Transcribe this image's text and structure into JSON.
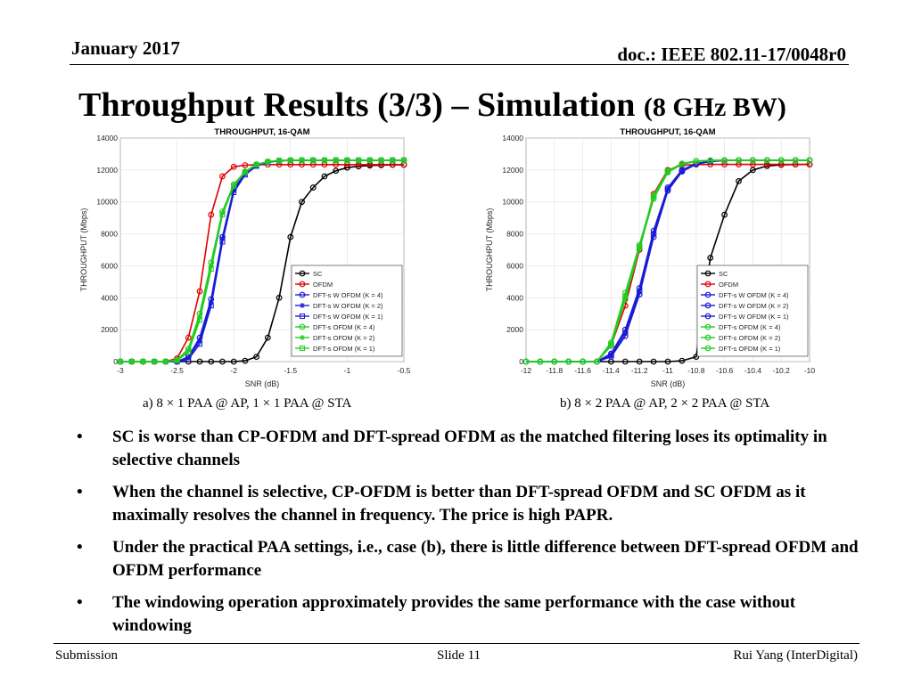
{
  "header": {
    "date": "January 2017",
    "doc": "doc.: IEEE 802.11-17/0048r0"
  },
  "title": {
    "main": "Throughput Results (3/3) – Simulation",
    "sub": "(8 GHz BW)"
  },
  "captions": [
    "a) 8 × 1 PAA @ AP, 1 × 1 PAA @ STA",
    "b) 8 × 2 PAA @ AP, 2 × 2 PAA @ STA"
  ],
  "bullets": [
    "SC is worse than CP-OFDM and DFT-spread OFDM as the matched filtering loses its optimality in selective channels",
    "When the channel is selective, CP-OFDM is better than DFT-spread OFDM and SC OFDM as it maximally resolves the channel in frequency. The price is high PAPR.",
    "Under the practical PAA settings, i.e., case (b), there is little difference between DFT-spread OFDM and OFDM performance",
    "The windowing operation approximately provides the same performance with the case without windowing"
  ],
  "footer": {
    "left": "Submission",
    "center": "Slide 11",
    "right": "Rui Yang (InterDigital)"
  },
  "bullet_symbol": "•",
  "chart_data": [
    {
      "type": "line",
      "title": "THROUGHPUT, 16-QAM",
      "xlabel": "SNR (dB)",
      "ylabel": "THROUGHPUT (Mbps)",
      "xlim": [
        -3,
        -0.5
      ],
      "ylim": [
        0,
        14000
      ],
      "xticks": [
        -3,
        -2.5,
        -2,
        -1.5,
        -1,
        -0.5
      ],
      "xtick_labels": [
        "-3",
        "-2.5",
        "-2",
        "-1.5",
        "-1",
        "-0.5"
      ],
      "yticks": [
        0,
        2000,
        4000,
        6000,
        8000,
        10000,
        12000,
        14000
      ],
      "grid": true,
      "legend_position": "lower-right",
      "x": [
        -3,
        -2.9,
        -2.8,
        -2.7,
        -2.6,
        -2.5,
        -2.4,
        -2.3,
        -2.2,
        -2.1,
        -2,
        -1.9,
        -1.8,
        -1.7,
        -1.6,
        -1.5,
        -1.4,
        -1.3,
        -1.2,
        -1.1,
        -1,
        -0.9,
        -0.8,
        -0.7,
        -0.6,
        -0.5
      ],
      "series": [
        {
          "name": "SC",
          "color": "#000000",
          "marker": "o",
          "values": [
            0,
            0,
            0,
            0,
            0,
            0,
            0,
            0,
            0,
            0,
            0,
            50,
            300,
            1500,
            4000,
            7800,
            10000,
            10900,
            11600,
            11950,
            12150,
            12230,
            12280,
            12300,
            12320,
            12330
          ]
        },
        {
          "name": "OFDM",
          "color": "#e00000",
          "marker": "o",
          "values": [
            0,
            0,
            0,
            0,
            0,
            200,
            1500,
            4400,
            9200,
            11600,
            12200,
            12300,
            12330,
            12340,
            12340,
            12340,
            12340,
            12340,
            12340,
            12340,
            12340,
            12340,
            12340,
            12340,
            12340,
            12340
          ]
        },
        {
          "name": "DFT-s W OFDM (K = 4)",
          "color": "#1a1ad6",
          "marker": "o",
          "values": [
            0,
            0,
            0,
            0,
            0,
            0,
            300,
            1500,
            3900,
            7800,
            10800,
            11800,
            12300,
            12500,
            12580,
            12600,
            12610,
            12610,
            12610,
            12610,
            12610,
            12610,
            12610,
            12610,
            12610,
            12610
          ]
        },
        {
          "name": "DFT-s W OFDM (K = 2)",
          "color": "#1a1ad6",
          "marker": "*",
          "values": [
            0,
            0,
            0,
            0,
            0,
            0,
            250,
            1300,
            3700,
            7700,
            10700,
            11800,
            12300,
            12500,
            12580,
            12600,
            12610,
            12610,
            12610,
            12610,
            12610,
            12610,
            12610,
            12610,
            12610,
            12610
          ]
        },
        {
          "name": "DFT-s W OFDM (K = 1)",
          "color": "#1a1ad6",
          "marker": "s",
          "values": [
            0,
            0,
            0,
            0,
            0,
            0,
            150,
            1100,
            3500,
            7500,
            10600,
            11700,
            12250,
            12480,
            12570,
            12600,
            12610,
            12610,
            12610,
            12610,
            12610,
            12610,
            12610,
            12610,
            12610,
            12610
          ]
        },
        {
          "name": "DFT-s OFDM (K = 4)",
          "color": "#22cc22",
          "marker": "o",
          "values": [
            0,
            0,
            0,
            0,
            0,
            100,
            800,
            3000,
            6200,
            9400,
            11100,
            11900,
            12350,
            12520,
            12590,
            12610,
            12610,
            12610,
            12610,
            12610,
            12610,
            12610,
            12610,
            12610,
            12610,
            12610
          ]
        },
        {
          "name": "DFT-s OFDM (K = 2)",
          "color": "#22cc22",
          "marker": "*",
          "values": [
            0,
            0,
            0,
            0,
            0,
            80,
            700,
            2800,
            6000,
            9300,
            11050,
            11900,
            12340,
            12520,
            12590,
            12610,
            12610,
            12610,
            12610,
            12610,
            12610,
            12610,
            12610,
            12610,
            12610,
            12610
          ]
        },
        {
          "name": "DFT-s OFDM (K = 1)",
          "color": "#22cc22",
          "marker": "s",
          "values": [
            0,
            0,
            0,
            0,
            0,
            60,
            600,
            2600,
            5800,
            9200,
            11000,
            11850,
            12330,
            12510,
            12590,
            12610,
            12610,
            12610,
            12610,
            12610,
            12610,
            12610,
            12610,
            12610,
            12610,
            12610
          ]
        }
      ]
    },
    {
      "type": "line",
      "title": "THROUGHPUT, 16-QAM",
      "xlabel": "SNR (dB)",
      "ylabel": "THROUGHPUT (Mbps)",
      "xlim": [
        -12,
        -10
      ],
      "ylim": [
        0,
        14000
      ],
      "xticks": [
        -12,
        -11.8,
        -11.6,
        -11.4,
        -11.2,
        -11,
        -10.8,
        -10.6,
        -10.4,
        -10.2,
        -10
      ],
      "xtick_labels": [
        "-12",
        "-11.8",
        "-11.6",
        "-11.4",
        "-11.2",
        "-11",
        "-10.8",
        "-10.6",
        "-10.4",
        "-10.2",
        "-10"
      ],
      "yticks": [
        0,
        2000,
        4000,
        6000,
        8000,
        10000,
        12000,
        14000
      ],
      "grid": true,
      "legend_position": "lower-right",
      "x": [
        -12,
        -11.9,
        -11.8,
        -11.7,
        -11.6,
        -11.5,
        -11.4,
        -11.3,
        -11.2,
        -11.1,
        -11,
        -10.9,
        -10.8,
        -10.7,
        -10.6,
        -10.5,
        -10.4,
        -10.3,
        -10.2,
        -10.1,
        -10
      ],
      "series": [
        {
          "name": "SC",
          "color": "#000000",
          "marker": "o",
          "values": [
            0,
            0,
            0,
            0,
            0,
            0,
            0,
            0,
            0,
            0,
            0,
            50,
            300,
            6500,
            9200,
            11300,
            12000,
            12250,
            12320,
            12340,
            12350
          ]
        },
        {
          "name": "OFDM",
          "color": "#e00000",
          "marker": "o",
          "values": [
            0,
            0,
            0,
            0,
            0,
            0,
            1000,
            3500,
            7000,
            10500,
            12000,
            12300,
            12340,
            12350,
            12350,
            12350,
            12350,
            12350,
            12350,
            12350,
            12350
          ]
        },
        {
          "name": "DFT-s W OFDM (K = 4)",
          "color": "#1a1ad6",
          "marker": "o",
          "values": [
            0,
            0,
            0,
            0,
            0,
            0,
            500,
            2000,
            4600,
            8200,
            10900,
            12000,
            12400,
            12550,
            12600,
            12610,
            12610,
            12610,
            12610,
            12610,
            12610
          ]
        },
        {
          "name": "DFT-s W OFDM (K = 2)",
          "color": "#1a1ad6",
          "marker": "o",
          "values": [
            0,
            0,
            0,
            0,
            0,
            0,
            400,
            1800,
            4400,
            8000,
            10800,
            11950,
            12380,
            12540,
            12600,
            12610,
            12610,
            12610,
            12610,
            12610,
            12610
          ]
        },
        {
          "name": "DFT-s W OFDM (K = 1)",
          "color": "#1a1ad6",
          "marker": "o",
          "values": [
            0,
            0,
            0,
            0,
            0,
            0,
            300,
            1600,
            4200,
            7800,
            10700,
            11900,
            12360,
            12530,
            12590,
            12610,
            12610,
            12610,
            12610,
            12610,
            12610
          ]
        },
        {
          "name": "DFT-s OFDM (K = 4)",
          "color": "#22cc22",
          "marker": "o",
          "values": [
            0,
            0,
            0,
            0,
            0,
            0,
            1200,
            4300,
            7300,
            10400,
            11950,
            12400,
            12560,
            12600,
            12610,
            12610,
            12610,
            12610,
            12610,
            12610,
            12610
          ]
        },
        {
          "name": "DFT-s OFDM (K = 2)",
          "color": "#22cc22",
          "marker": "o",
          "values": [
            0,
            0,
            0,
            0,
            0,
            0,
            1100,
            4100,
            7200,
            10300,
            11900,
            12380,
            12550,
            12600,
            12610,
            12610,
            12610,
            12610,
            12610,
            12610,
            12610
          ]
        },
        {
          "name": "DFT-s OFDM (K = 1)",
          "color": "#22cc22",
          "marker": "o",
          "values": [
            0,
            0,
            0,
            0,
            0,
            0,
            1000,
            3900,
            7100,
            10200,
            11850,
            12360,
            12540,
            12590,
            12610,
            12610,
            12610,
            12610,
            12610,
            12610,
            12610
          ]
        }
      ]
    }
  ]
}
